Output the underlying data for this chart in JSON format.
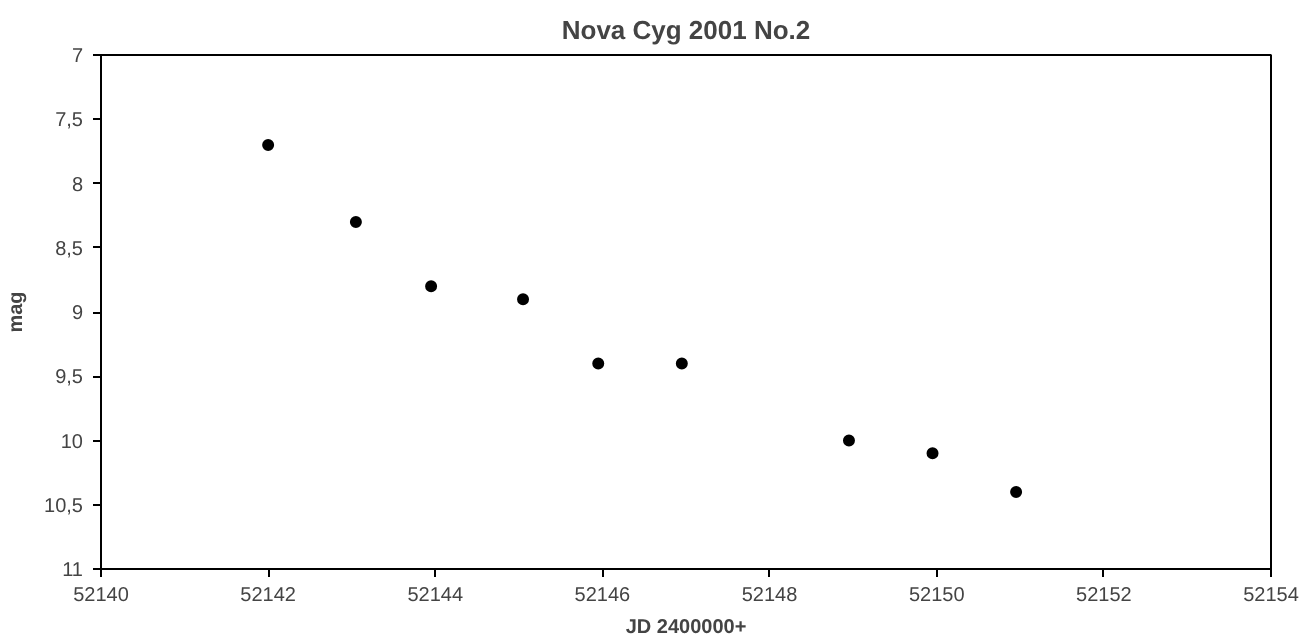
{
  "chart_data": {
    "type": "scatter",
    "title": "Nova Cyg 2001 No.2",
    "xlabel": "JD 2400000+",
    "ylabel": "mag",
    "x": [
      52142.0,
      52143.05,
      52143.95,
      52145.05,
      52145.95,
      52146.95,
      52148.95,
      52149.95,
      52150.95
    ],
    "series": [
      {
        "color": "#000000",
        "values": [
          7.7,
          8.3,
          8.8,
          8.9,
          9.4,
          9.4,
          10.0,
          10.1,
          10.4
        ]
      }
    ],
    "xlim": [
      52140,
      52154
    ],
    "xticks": [
      52140,
      52142,
      52144,
      52146,
      52148,
      52150,
      52152,
      52154
    ],
    "ylim": [
      11,
      7
    ],
    "yticks": [
      7,
      {
        "value": 7.5,
        "label": "7,5"
      },
      8,
      {
        "value": 8.5,
        "label": "8,5"
      },
      9,
      {
        "value": 9.5,
        "label": "9,5"
      },
      10,
      {
        "value": 10.5,
        "label": "10,5"
      },
      11
    ],
    "grid": false,
    "marker": "circle"
  }
}
